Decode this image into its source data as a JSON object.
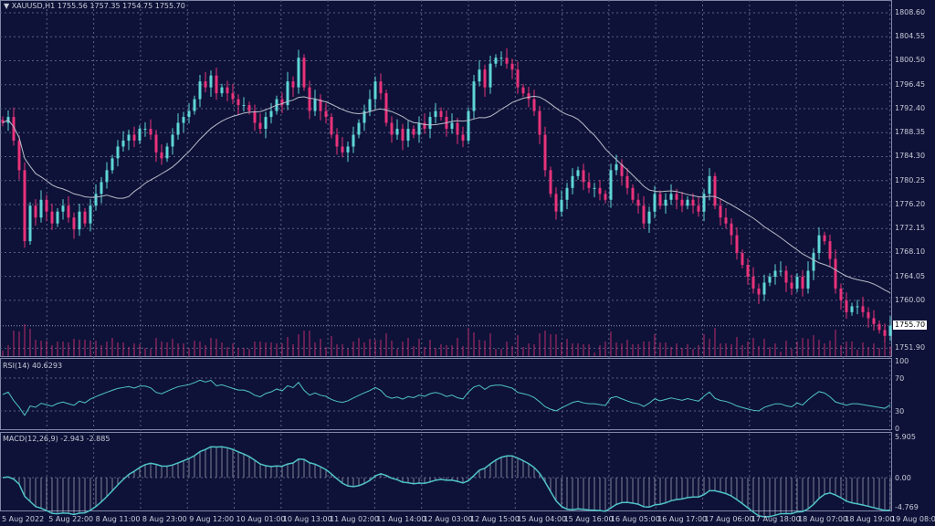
{
  "header": {
    "symbol": "XAUUSD,H1",
    "open": "1755.56",
    "high": "1757.35",
    "low": "1754.75",
    "close": "1755.70",
    "menu_icon": "triangle-down-icon"
  },
  "colors": {
    "background": "#0e1238",
    "bull": "#5fd6d8",
    "bear": "#e8337a",
    "ma": "#b8bcc8",
    "indicator": "#4fc3c8",
    "grid": "#5a6080"
  },
  "price_axis": {
    "labels": [
      "1808.60",
      "1804.55",
      "1800.50",
      "1796.45",
      "1792.40",
      "1788.35",
      "1784.30",
      "1780.25",
      "1776.20",
      "1772.15",
      "1768.10",
      "1764.05",
      "1760.00",
      "1751.90"
    ],
    "current": "1755.70"
  },
  "rsi": {
    "label": "RSI(14) 40.6293",
    "levels": [
      "100",
      "70",
      "30",
      "0"
    ]
  },
  "macd": {
    "label": "MACD(12,26,9) -2.943 -2.885",
    "levels": [
      "5.905",
      "0.00",
      "-4.769"
    ]
  },
  "time_axis": [
    "5 Aug 2022",
    "5 Aug 22:00",
    "8 Aug 11:00",
    "8 Aug 23:00",
    "9 Aug 12:00",
    "10 Aug 01:00",
    "10 Aug 13:00",
    "11 Aug 02:00",
    "11 Aug 14:00",
    "12 Aug 03:00",
    "12 Aug 15:00",
    "15 Aug 04:00",
    "15 Aug 16:00",
    "16 Aug 05:00",
    "16 Aug 17:00",
    "17 Aug 06:00",
    "17 Aug 18:00",
    "18 Aug 07:00",
    "18 Aug 19:00",
    "19 Aug 08:00"
  ],
  "chart_data": {
    "type": "candlestick",
    "ylim": [
      1751.9,
      1808.6
    ],
    "close": [
      1790,
      1791,
      1787,
      1782,
      1770,
      1776,
      1774,
      1777,
      1775,
      1773,
      1775,
      1776,
      1774,
      1772,
      1775,
      1773,
      1776,
      1778,
      1780,
      1782,
      1784,
      1786,
      1787,
      1788,
      1787,
      1789,
      1789,
      1788,
      1785,
      1784,
      1786,
      1788,
      1790,
      1791,
      1792,
      1794,
      1797,
      1796,
      1798,
      1795,
      1796,
      1795,
      1794,
      1793,
      1793,
      1792,
      1790,
      1789,
      1791,
      1792,
      1794,
      1793,
      1797,
      1796,
      1801,
      1796,
      1792,
      1794,
      1792,
      1791,
      1788,
      1786,
      1785,
      1786,
      1788,
      1790,
      1792,
      1794,
      1797,
      1795,
      1790,
      1788,
      1789,
      1787,
      1789,
      1788,
      1790,
      1789,
      1791,
      1792,
      1791,
      1789,
      1790,
      1788,
      1787,
      1792,
      1797,
      1799,
      1796,
      1800,
      1801,
      1801,
      1800,
      1799,
      1796,
      1795,
      1794,
      1792,
      1788,
      1782,
      1778,
      1775,
      1777,
      1779,
      1781,
      1782,
      1780,
      1779,
      1779,
      1778,
      1777,
      1782,
      1783,
      1781,
      1779,
      1777,
      1776,
      1773,
      1775,
      1778,
      1776,
      1777,
      1778,
      1777,
      1776,
      1777,
      1776,
      1775,
      1778,
      1781,
      1776,
      1774,
      1773,
      1771,
      1768,
      1766,
      1764,
      1762,
      1761,
      1763,
      1764,
      1765,
      1765,
      1763,
      1762,
      1764,
      1762,
      1765,
      1768,
      1771,
      1770,
      1767,
      1762,
      1760,
      1758,
      1759,
      1759,
      1758,
      1757,
      1756,
      1755,
      1754,
      1755.7
    ],
    "ma_period": 20
  }
}
